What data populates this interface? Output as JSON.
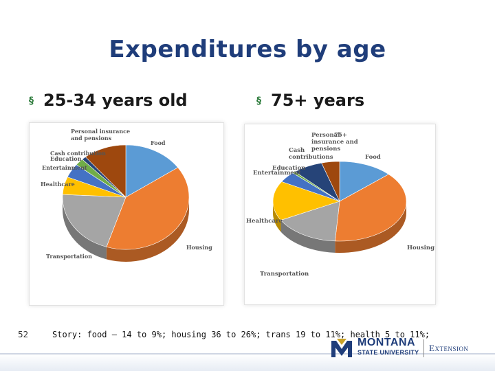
{
  "slide": {
    "title": "Expenditures by age",
    "slide_number": "52",
    "story": "Story: food – 14 to 9%; housing 36 to 26%; trans 19 to 11%; health 5 to 11%;"
  },
  "bullets": [
    {
      "text": "25-34 years old",
      "marker": "§"
    },
    {
      "text": "75+ years",
      "marker": "§"
    }
  ],
  "logo": {
    "line1": "MONTANA",
    "line2": "STATE UNIVERSITY",
    "extension": "Extension",
    "colors": {
      "navy": "#1f3d7a",
      "gold": "#c9a227"
    }
  },
  "chart_data": [
    {
      "type": "pie",
      "title": "",
      "categories": [
        "Food",
        "Housing",
        "Transportation",
        "Healthcare",
        "Entertainment",
        "Education",
        "Cash contribution",
        "Personal insurance and pensions"
      ],
      "values": [
        14,
        36,
        19,
        5,
        4,
        2,
        1,
        10
      ],
      "label_texts": [
        "Food",
        "Housing",
        "Transportation",
        "Healthcare",
        "Entertainment",
        "Education",
        "Cash contribution",
        "Personal insurance\nand pensions"
      ],
      "colors": [
        "#5b9bd5",
        "#ed7d31",
        "#a5a5a5",
        "#ffc000",
        "#4472c4",
        "#70ad47",
        "#264478",
        "#9e480e"
      ]
    },
    {
      "type": "pie",
      "title": "75+",
      "categories": [
        "Food",
        "Housing",
        "Transportation",
        "Healthcare",
        "Entertainment",
        "Education",
        "Cash contributions",
        "Personal insurance and pensions"
      ],
      "values": [
        9,
        26,
        11,
        11,
        3,
        0.5,
        5,
        3
      ],
      "label_texts": [
        "Food",
        "Housing",
        "Transportation",
        "Healthcare",
        "Entertainment",
        "Education",
        "Cash\ncontributions",
        "Personal\ninsurance and\npensions"
      ],
      "colors": [
        "#5b9bd5",
        "#ed7d31",
        "#a5a5a5",
        "#ffc000",
        "#4472c4",
        "#70ad47",
        "#264478",
        "#9e480e"
      ]
    }
  ]
}
